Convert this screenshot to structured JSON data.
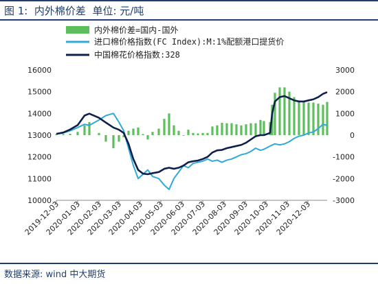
{
  "figure": {
    "title": "图 1:  内外棉价差  单位: 元/吨",
    "source": "数据来源: wind 中大期货"
  },
  "chart_data": {
    "type": "bar+line",
    "legend": [
      {
        "label": "内外棉价差=国内-国外",
        "kind": "bar",
        "color": "#5cbf5c"
      },
      {
        "label": "进口棉价格指数(FC Index):M:1%配额港口提货价",
        "kind": "line",
        "color": "#2fa8dc"
      },
      {
        "label": "中国棉花价格指数:328",
        "kind": "line",
        "color": "#0d1f4a"
      }
    ],
    "left_axis": {
      "min": 10000,
      "max": 16000,
      "ticks": [
        10000,
        11000,
        12000,
        13000,
        14000,
        15000,
        16000
      ]
    },
    "right_axis": {
      "min": -3000,
      "max": 3000,
      "ticks": [
        -3000,
        -2000,
        -1000,
        0,
        1000,
        2000,
        3000
      ]
    },
    "x_ticks": [
      "2019-12-03",
      "2020-01-03",
      "2020-02-03",
      "2020-03-03",
      "2020-04-03",
      "2020-05-03",
      "2020-06-03",
      "2020-07-03",
      "2020-08-03",
      "2020-09-03",
      "2020-10-03",
      "2020-11-03",
      "2020-12-03"
    ],
    "x_range": [
      "2019-12-03",
      "2020-12-31"
    ],
    "series": [
      {
        "name": "中国棉花价格指数:328",
        "axis": "left",
        "points": [
          [
            "2019-12-03",
            13060
          ],
          [
            "2019-12-13",
            13120
          ],
          [
            "2019-12-23",
            13260
          ],
          [
            "2020-01-03",
            13460
          ],
          [
            "2020-01-13",
            13900
          ],
          [
            "2020-01-20",
            13990
          ],
          [
            "2020-02-03",
            13800
          ],
          [
            "2020-02-13",
            13580
          ],
          [
            "2020-02-24",
            13350
          ],
          [
            "2020-03-03",
            13250
          ],
          [
            "2020-03-10",
            13100
          ],
          [
            "2020-03-17",
            12600
          ],
          [
            "2020-03-24",
            11900
          ],
          [
            "2020-03-31",
            11400
          ],
          [
            "2020-04-07",
            11230
          ],
          [
            "2020-04-14",
            11200
          ],
          [
            "2020-04-21",
            11250
          ],
          [
            "2020-04-30",
            11300
          ],
          [
            "2020-05-08",
            11450
          ],
          [
            "2020-05-15",
            11500
          ],
          [
            "2020-05-22",
            11450
          ],
          [
            "2020-05-29",
            11500
          ],
          [
            "2020-06-05",
            11600
          ],
          [
            "2020-06-12",
            11750
          ],
          [
            "2020-06-19",
            11800
          ],
          [
            "2020-06-26",
            11830
          ],
          [
            "2020-07-03",
            11900
          ],
          [
            "2020-07-10",
            12000
          ],
          [
            "2020-07-17",
            12200
          ],
          [
            "2020-07-24",
            12300
          ],
          [
            "2020-07-31",
            12320
          ],
          [
            "2020-08-07",
            12400
          ],
          [
            "2020-08-14",
            12450
          ],
          [
            "2020-08-21",
            12500
          ],
          [
            "2020-08-28",
            12550
          ],
          [
            "2020-09-04",
            12650
          ],
          [
            "2020-09-11",
            12800
          ],
          [
            "2020-09-18",
            12950
          ],
          [
            "2020-09-25",
            13000
          ],
          [
            "2020-09-30",
            13000
          ],
          [
            "2020-10-09",
            13100
          ],
          [
            "2020-10-12",
            14000
          ],
          [
            "2020-10-16",
            14550
          ],
          [
            "2020-10-23",
            14750
          ],
          [
            "2020-10-30",
            14800
          ],
          [
            "2020-11-06",
            14700
          ],
          [
            "2020-11-13",
            14600
          ],
          [
            "2020-11-20",
            14550
          ],
          [
            "2020-11-27",
            14550
          ],
          [
            "2020-12-04",
            14600
          ],
          [
            "2020-12-11",
            14650
          ],
          [
            "2020-12-18",
            14750
          ],
          [
            "2020-12-25",
            14900
          ],
          [
            "2020-12-31",
            14980
          ]
        ]
      },
      {
        "name": "进口棉价格指数(FC Index):M:1%配额港口提货价",
        "axis": "left",
        "points": [
          [
            "2019-12-03",
            13050
          ],
          [
            "2019-12-13",
            13100
          ],
          [
            "2019-12-23",
            13200
          ],
          [
            "2020-01-03",
            13350
          ],
          [
            "2020-01-13",
            13500
          ],
          [
            "2020-01-20",
            13450
          ],
          [
            "2020-02-03",
            13700
          ],
          [
            "2020-02-13",
            13900
          ],
          [
            "2020-02-24",
            14000
          ],
          [
            "2020-03-03",
            13600
          ],
          [
            "2020-03-10",
            13200
          ],
          [
            "2020-03-17",
            12400
          ],
          [
            "2020-03-24",
            11600
          ],
          [
            "2020-03-31",
            11000
          ],
          [
            "2020-04-07",
            11200
          ],
          [
            "2020-04-14",
            11400
          ],
          [
            "2020-04-21",
            11100
          ],
          [
            "2020-04-30",
            11000
          ],
          [
            "2020-05-08",
            10700
          ],
          [
            "2020-05-15",
            10500
          ],
          [
            "2020-05-22",
            11000
          ],
          [
            "2020-05-29",
            11300
          ],
          [
            "2020-06-05",
            11600
          ],
          [
            "2020-06-12",
            11500
          ],
          [
            "2020-06-19",
            11700
          ],
          [
            "2020-06-26",
            11750
          ],
          [
            "2020-07-03",
            11800
          ],
          [
            "2020-07-10",
            11900
          ],
          [
            "2020-07-17",
            11800
          ],
          [
            "2020-07-24",
            11850
          ],
          [
            "2020-07-31",
            11750
          ],
          [
            "2020-08-07",
            11850
          ],
          [
            "2020-08-14",
            11900
          ],
          [
            "2020-08-21",
            12000
          ],
          [
            "2020-08-28",
            12100
          ],
          [
            "2020-09-04",
            12150
          ],
          [
            "2020-09-11",
            12250
          ],
          [
            "2020-09-18",
            12400
          ],
          [
            "2020-09-25",
            12300
          ],
          [
            "2020-09-30",
            12350
          ],
          [
            "2020-10-09",
            12500
          ],
          [
            "2020-10-16",
            12600
          ],
          [
            "2020-10-23",
            12550
          ],
          [
            "2020-10-30",
            12600
          ],
          [
            "2020-11-06",
            12700
          ],
          [
            "2020-11-13",
            12850
          ],
          [
            "2020-11-20",
            12950
          ],
          [
            "2020-11-27",
            13000
          ],
          [
            "2020-12-04",
            13100
          ],
          [
            "2020-12-11",
            13150
          ],
          [
            "2020-12-18",
            13300
          ],
          [
            "2020-12-25",
            13500
          ],
          [
            "2020-12-31",
            13450
          ]
        ]
      },
      {
        "name": "内外棉价差=国内-国外",
        "axis": "right",
        "points": [
          [
            "2019-12-03",
            50
          ],
          [
            "2019-12-13",
            50
          ],
          [
            "2019-12-23",
            60
          ],
          [
            "2020-01-03",
            150
          ],
          [
            "2020-01-13",
            450
          ],
          [
            "2020-01-20",
            600
          ],
          [
            "2020-02-03",
            100
          ],
          [
            "2020-02-13",
            -300
          ],
          [
            "2020-02-24",
            -600
          ],
          [
            "2020-03-03",
            -300
          ],
          [
            "2020-03-10",
            -100
          ],
          [
            "2020-03-17",
            200
          ],
          [
            "2020-03-24",
            300
          ],
          [
            "2020-03-31",
            350
          ],
          [
            "2020-04-07",
            50
          ],
          [
            "2020-04-14",
            -200
          ],
          [
            "2020-04-21",
            150
          ],
          [
            "2020-04-30",
            300
          ],
          [
            "2020-05-08",
            750
          ],
          [
            "2020-05-15",
            1000
          ],
          [
            "2020-05-22",
            450
          ],
          [
            "2020-05-29",
            200
          ],
          [
            "2020-06-05",
            0
          ],
          [
            "2020-06-12",
            250
          ],
          [
            "2020-06-19",
            100
          ],
          [
            "2020-06-26",
            80
          ],
          [
            "2020-07-03",
            100
          ],
          [
            "2020-07-10",
            100
          ],
          [
            "2020-07-17",
            400
          ],
          [
            "2020-07-24",
            450
          ],
          [
            "2020-07-31",
            570
          ],
          [
            "2020-08-07",
            550
          ],
          [
            "2020-08-14",
            550
          ],
          [
            "2020-08-21",
            500
          ],
          [
            "2020-08-28",
            450
          ],
          [
            "2020-09-04",
            500
          ],
          [
            "2020-09-11",
            550
          ],
          [
            "2020-09-18",
            550
          ],
          [
            "2020-09-25",
            700
          ],
          [
            "2020-09-30",
            650
          ],
          [
            "2020-10-09",
            600
          ],
          [
            "2020-10-12",
            1400
          ],
          [
            "2020-10-16",
            1950
          ],
          [
            "2020-10-23",
            2200
          ],
          [
            "2020-10-30",
            2200
          ],
          [
            "2020-11-06",
            2000
          ],
          [
            "2020-11-13",
            1750
          ],
          [
            "2020-11-20",
            1600
          ],
          [
            "2020-11-27",
            1550
          ],
          [
            "2020-12-04",
            1500
          ],
          [
            "2020-12-11",
            1500
          ],
          [
            "2020-12-18",
            1450
          ],
          [
            "2020-12-25",
            1400
          ],
          [
            "2020-12-31",
            1530
          ]
        ]
      }
    ]
  }
}
